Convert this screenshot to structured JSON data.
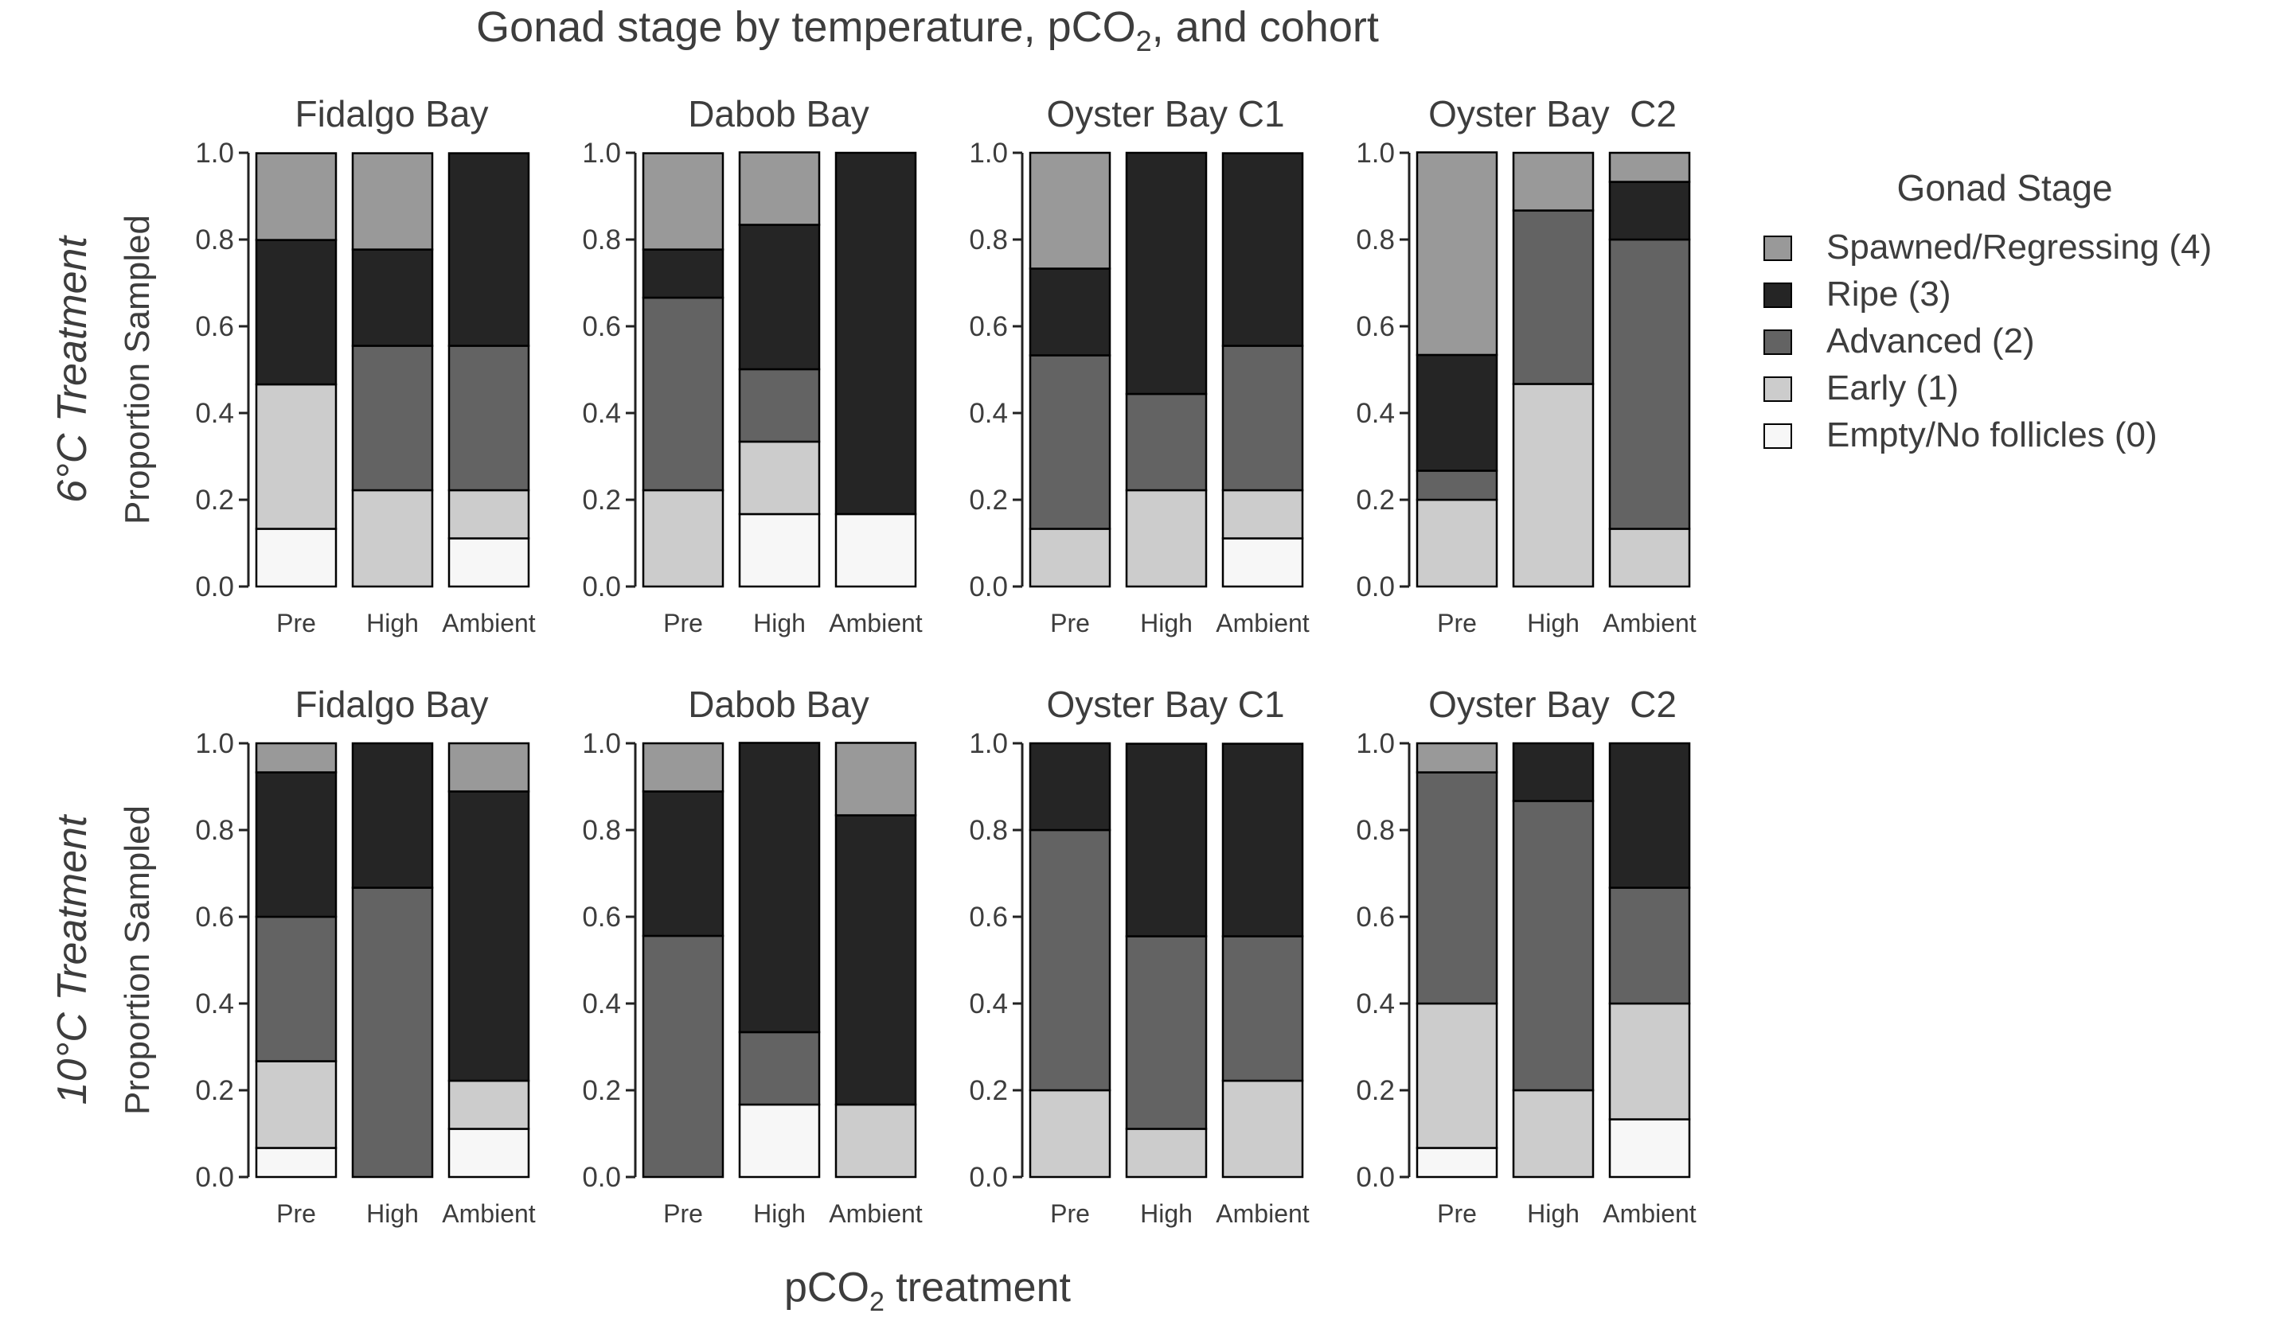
{
  "figure": {
    "title_pre": "Gonad stage by temperature, pCO",
    "title_sub": "2",
    "title_post": ", and cohort",
    "xlabel_pre": "pCO",
    "xlabel_sub": "2",
    "xlabel_post": " treatment"
  },
  "legend": {
    "title": "Gonad Stage",
    "placement": "right",
    "items": [
      {
        "label": "Spawned/Regressing (4)",
        "color": "#999999"
      },
      {
        "label": "Ripe (3)",
        "color": "#252525"
      },
      {
        "label": "Advanced (2)",
        "color": "#636363"
      },
      {
        "label": "Early (1)",
        "color": "#cccccc"
      },
      {
        "label": "Empty/No follicles (0)",
        "color": "#f7f7f7"
      }
    ]
  },
  "chart_data": {
    "type": "bar",
    "stacked": true,
    "ylabel": "Proportion Sampled",
    "ylim": [
      0,
      1
    ],
    "yticks": [
      "0.0",
      "0.2",
      "0.4",
      "0.6",
      "0.8",
      "1.0"
    ],
    "categories": [
      "Pre",
      "High",
      "Ambient"
    ],
    "stack_order_bottom_to_top": [
      "Empty/No follicles (0)",
      "Early (1)",
      "Advanced (2)",
      "Ripe (3)",
      "Spawned/Regressing (4)"
    ],
    "rows": [
      {
        "label": "6°C Treatment",
        "panels": [
          {
            "title": "Fidalgo Bay",
            "bars": [
              [
                0.133,
                0.333,
                0.0,
                0.333,
                0.2
              ],
              [
                0.0,
                0.222,
                0.333,
                0.222,
                0.222
              ],
              [
                0.111,
                0.111,
                0.333,
                0.444,
                0.0
              ]
            ]
          },
          {
            "title": "Dabob Bay",
            "bars": [
              [
                0.0,
                0.222,
                0.444,
                0.111,
                0.222
              ],
              [
                0.167,
                0.167,
                0.167,
                0.333,
                0.167
              ],
              [
                0.167,
                0.0,
                0.0,
                0.833,
                0.0
              ]
            ]
          },
          {
            "title": "Oyster Bay C1",
            "bars": [
              [
                0.0,
                0.133,
                0.4,
                0.2,
                0.267
              ],
              [
                0.0,
                0.222,
                0.222,
                0.556,
                0.0
              ],
              [
                0.111,
                0.111,
                0.333,
                0.444,
                0.0
              ]
            ]
          },
          {
            "title": "Oyster Bay  C2",
            "bars": [
              [
                0.0,
                0.2,
                0.067,
                0.267,
                0.467
              ],
              [
                0.0,
                0.467,
                0.4,
                0.0,
                0.133
              ],
              [
                0.0,
                0.133,
                0.667,
                0.133,
                0.067
              ]
            ]
          }
        ]
      },
      {
        "label": "10°C Treatment",
        "panels": [
          {
            "title": "Fidalgo Bay",
            "bars": [
              [
                0.067,
                0.2,
                0.333,
                0.333,
                0.067
              ],
              [
                0.0,
                0.0,
                0.667,
                0.333,
                0.0
              ],
              [
                0.111,
                0.111,
                0.0,
                0.667,
                0.111
              ]
            ]
          },
          {
            "title": "Dabob Bay",
            "bars": [
              [
                0.0,
                0.0,
                0.556,
                0.333,
                0.111
              ],
              [
                0.167,
                0.0,
                0.167,
                0.667,
                0.0
              ],
              [
                0.0,
                0.167,
                0.0,
                0.667,
                0.167
              ]
            ]
          },
          {
            "title": "Oyster Bay C1",
            "bars": [
              [
                0.0,
                0.2,
                0.6,
                0.2,
                0.0
              ],
              [
                0.0,
                0.111,
                0.444,
                0.444,
                0.0
              ],
              [
                0.0,
                0.222,
                0.333,
                0.444,
                0.0
              ]
            ]
          },
          {
            "title": "Oyster Bay  C2",
            "bars": [
              [
                0.067,
                0.333,
                0.533,
                0.0,
                0.067
              ],
              [
                0.0,
                0.2,
                0.667,
                0.133,
                0.0
              ],
              [
                0.133,
                0.267,
                0.267,
                0.333,
                0.0
              ]
            ]
          }
        ]
      }
    ]
  }
}
